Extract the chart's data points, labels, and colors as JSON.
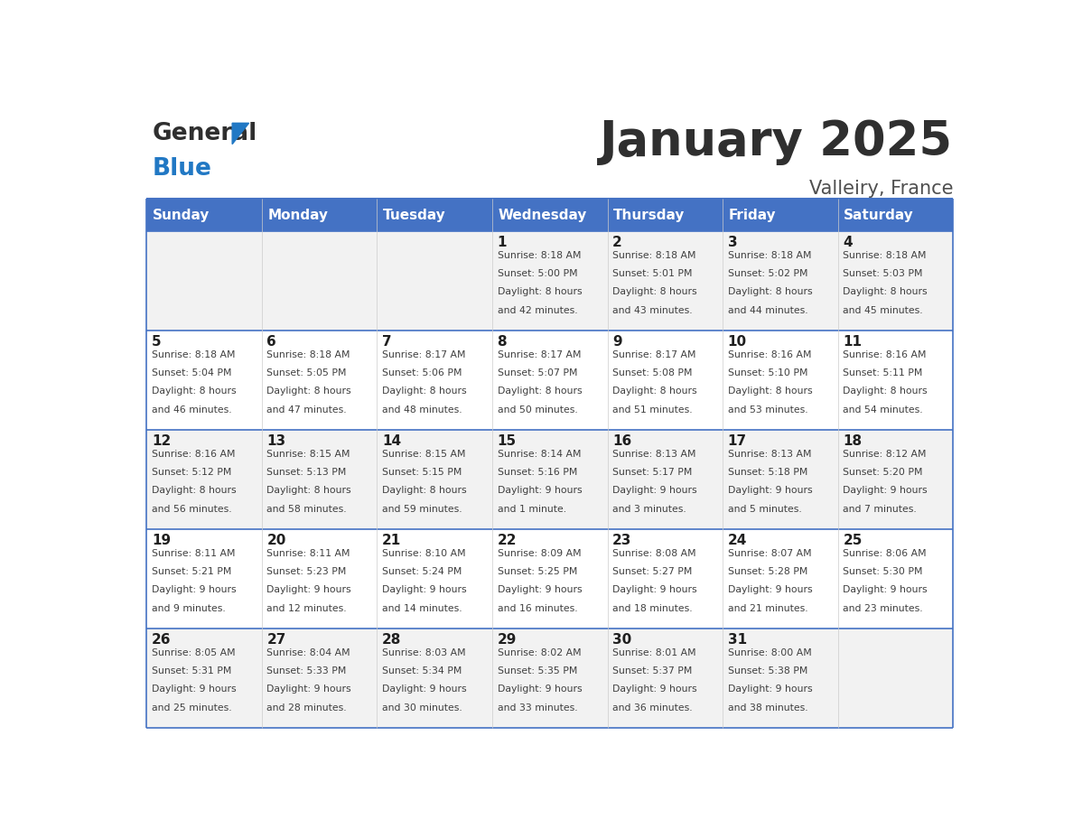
{
  "title": "January 2025",
  "subtitle": "Valleiry, France",
  "header_bg_color": "#4472C4",
  "header_text_color": "#FFFFFF",
  "day_names": [
    "Sunday",
    "Monday",
    "Tuesday",
    "Wednesday",
    "Thursday",
    "Friday",
    "Saturday"
  ],
  "row_bg_even": "#F2F2F2",
  "row_bg_odd": "#FFFFFF",
  "cell_border_color": "#4472C4",
  "week_border_color": "#4472C4",
  "title_color": "#2F2F2F",
  "subtitle_color": "#4F4F4F",
  "day_num_color": "#1F1F1F",
  "text_color": "#3F3F3F",
  "logo_black": "#2F2F2F",
  "logo_blue": "#2178C4",
  "triangle_color": "#2178C4",
  "weeks": [
    {
      "days": [
        {
          "day": null,
          "sunrise": null,
          "sunset": null,
          "daylight": null
        },
        {
          "day": null,
          "sunrise": null,
          "sunset": null,
          "daylight": null
        },
        {
          "day": null,
          "sunrise": null,
          "sunset": null,
          "daylight": null
        },
        {
          "day": 1,
          "sunrise": "8:18 AM",
          "sunset": "5:00 PM",
          "daylight": "8 hours\nand 42 minutes."
        },
        {
          "day": 2,
          "sunrise": "8:18 AM",
          "sunset": "5:01 PM",
          "daylight": "8 hours\nand 43 minutes."
        },
        {
          "day": 3,
          "sunrise": "8:18 AM",
          "sunset": "5:02 PM",
          "daylight": "8 hours\nand 44 minutes."
        },
        {
          "day": 4,
          "sunrise": "8:18 AM",
          "sunset": "5:03 PM",
          "daylight": "8 hours\nand 45 minutes."
        }
      ]
    },
    {
      "days": [
        {
          "day": 5,
          "sunrise": "8:18 AM",
          "sunset": "5:04 PM",
          "daylight": "8 hours\nand 46 minutes."
        },
        {
          "day": 6,
          "sunrise": "8:18 AM",
          "sunset": "5:05 PM",
          "daylight": "8 hours\nand 47 minutes."
        },
        {
          "day": 7,
          "sunrise": "8:17 AM",
          "sunset": "5:06 PM",
          "daylight": "8 hours\nand 48 minutes."
        },
        {
          "day": 8,
          "sunrise": "8:17 AM",
          "sunset": "5:07 PM",
          "daylight": "8 hours\nand 50 minutes."
        },
        {
          "day": 9,
          "sunrise": "8:17 AM",
          "sunset": "5:08 PM",
          "daylight": "8 hours\nand 51 minutes."
        },
        {
          "day": 10,
          "sunrise": "8:16 AM",
          "sunset": "5:10 PM",
          "daylight": "8 hours\nand 53 minutes."
        },
        {
          "day": 11,
          "sunrise": "8:16 AM",
          "sunset": "5:11 PM",
          "daylight": "8 hours\nand 54 minutes."
        }
      ]
    },
    {
      "days": [
        {
          "day": 12,
          "sunrise": "8:16 AM",
          "sunset": "5:12 PM",
          "daylight": "8 hours\nand 56 minutes."
        },
        {
          "day": 13,
          "sunrise": "8:15 AM",
          "sunset": "5:13 PM",
          "daylight": "8 hours\nand 58 minutes."
        },
        {
          "day": 14,
          "sunrise": "8:15 AM",
          "sunset": "5:15 PM",
          "daylight": "8 hours\nand 59 minutes."
        },
        {
          "day": 15,
          "sunrise": "8:14 AM",
          "sunset": "5:16 PM",
          "daylight": "9 hours\nand 1 minute."
        },
        {
          "day": 16,
          "sunrise": "8:13 AM",
          "sunset": "5:17 PM",
          "daylight": "9 hours\nand 3 minutes."
        },
        {
          "day": 17,
          "sunrise": "8:13 AM",
          "sunset": "5:18 PM",
          "daylight": "9 hours\nand 5 minutes."
        },
        {
          "day": 18,
          "sunrise": "8:12 AM",
          "sunset": "5:20 PM",
          "daylight": "9 hours\nand 7 minutes."
        }
      ]
    },
    {
      "days": [
        {
          "day": 19,
          "sunrise": "8:11 AM",
          "sunset": "5:21 PM",
          "daylight": "9 hours\nand 9 minutes."
        },
        {
          "day": 20,
          "sunrise": "8:11 AM",
          "sunset": "5:23 PM",
          "daylight": "9 hours\nand 12 minutes."
        },
        {
          "day": 21,
          "sunrise": "8:10 AM",
          "sunset": "5:24 PM",
          "daylight": "9 hours\nand 14 minutes."
        },
        {
          "day": 22,
          "sunrise": "8:09 AM",
          "sunset": "5:25 PM",
          "daylight": "9 hours\nand 16 minutes."
        },
        {
          "day": 23,
          "sunrise": "8:08 AM",
          "sunset": "5:27 PM",
          "daylight": "9 hours\nand 18 minutes."
        },
        {
          "day": 24,
          "sunrise": "8:07 AM",
          "sunset": "5:28 PM",
          "daylight": "9 hours\nand 21 minutes."
        },
        {
          "day": 25,
          "sunrise": "8:06 AM",
          "sunset": "5:30 PM",
          "daylight": "9 hours\nand 23 minutes."
        }
      ]
    },
    {
      "days": [
        {
          "day": 26,
          "sunrise": "8:05 AM",
          "sunset": "5:31 PM",
          "daylight": "9 hours\nand 25 minutes."
        },
        {
          "day": 27,
          "sunrise": "8:04 AM",
          "sunset": "5:33 PM",
          "daylight": "9 hours\nand 28 minutes."
        },
        {
          "day": 28,
          "sunrise": "8:03 AM",
          "sunset": "5:34 PM",
          "daylight": "9 hours\nand 30 minutes."
        },
        {
          "day": 29,
          "sunrise": "8:02 AM",
          "sunset": "5:35 PM",
          "daylight": "9 hours\nand 33 minutes."
        },
        {
          "day": 30,
          "sunrise": "8:01 AM",
          "sunset": "5:37 PM",
          "daylight": "9 hours\nand 36 minutes."
        },
        {
          "day": 31,
          "sunrise": "8:00 AM",
          "sunset": "5:38 PM",
          "daylight": "9 hours\nand 38 minutes."
        },
        {
          "day": null,
          "sunrise": null,
          "sunset": null,
          "daylight": null
        }
      ]
    }
  ]
}
